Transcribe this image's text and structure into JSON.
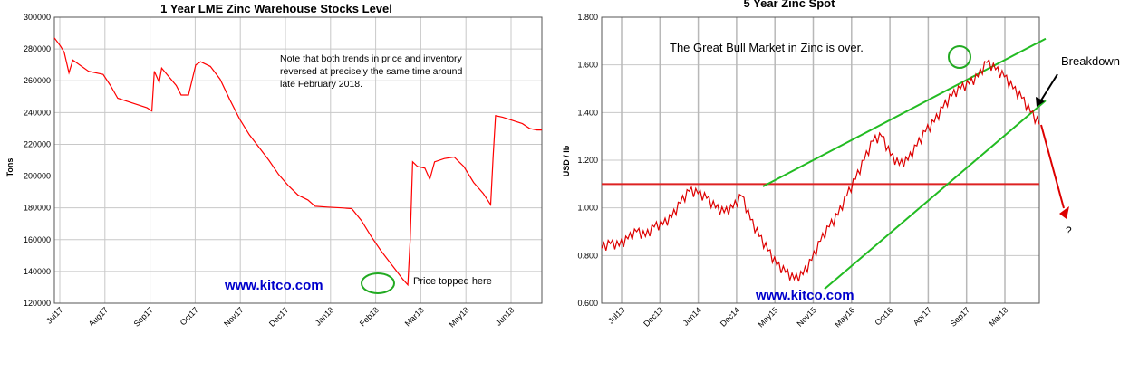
{
  "left": {
    "title": "1 Year LME Zinc Warehouse Stocks Level",
    "ylabel": "Tons",
    "ylim": [
      120000,
      300000
    ],
    "yticks": [
      120000,
      140000,
      160000,
      180000,
      200000,
      220000,
      240000,
      260000,
      280000,
      300000
    ],
    "xticks": [
      "Jul17",
      "Aug17",
      "Sep17",
      "Oct17",
      "Nov17",
      "Dec17",
      "Jan18",
      "Feb18",
      "Mar18",
      "May18",
      "Jun18"
    ],
    "note": [
      "Note that both trends in price and inventory",
      "reversed at precisely the same time around",
      "late February 2018."
    ],
    "annotation": "Price topped here",
    "watermark": "www.kitco.com",
    "line_color": "#ff0000",
    "circle_color": "#22aa22"
  },
  "right": {
    "title": "5 Year Zinc Spot",
    "ylabel": "USD / lb",
    "ylim": [
      0.6,
      1.8
    ],
    "yticks": [
      "0.600",
      "0.800",
      "1.000",
      "1.200",
      "1.400",
      "1.600",
      "1.800"
    ],
    "xticks": [
      "Jul13",
      "Dec13",
      "Jun14",
      "Dec14",
      "May15",
      "Nov15",
      "May16",
      "Oct16",
      "Apr17",
      "Sep17",
      "Mar18"
    ],
    "note": "The Great Bull Market in Zinc is over.",
    "breakdown_label": "Breakdown",
    "question": "?",
    "watermark": "www.kitco.com",
    "price_color": "#dd0000",
    "support_color": "#dd2222",
    "channel_color": "#22bb22",
    "support_level": 1.1,
    "channel_top": [
      [
        0,
        1.09
      ],
      [
        1,
        1.71
      ]
    ],
    "channel_bottom": [
      [
        0,
        0.66
      ],
      [
        1,
        1.45
      ]
    ]
  },
  "chart_data": [
    {
      "type": "line",
      "title": "1 Year LME Zinc Warehouse Stocks Level",
      "ylabel": "Tons",
      "ylim": [
        120000,
        300000
      ],
      "categories": [
        "Jul17",
        "Aug17",
        "Sep17",
        "Oct17",
        "Nov17",
        "Dec17",
        "Jan18",
        "Feb18",
        "Mar18",
        "May18",
        "Jun18"
      ],
      "series": [
        {
          "values": [
            [
              0,
              287000
            ],
            [
              0.012,
              282000
            ],
            [
              0.02,
              278000
            ],
            [
              0.03,
              265000
            ],
            [
              0.038,
              273000
            ],
            [
              0.07,
              266000
            ],
            [
              0.1,
              264000
            ],
            [
              0.115,
              257000
            ],
            [
              0.13,
              249000
            ],
            [
              0.16,
              246000
            ],
            [
              0.19,
              243000
            ],
            [
              0.2,
              241000
            ],
            [
              0.205,
              266000
            ],
            [
              0.215,
              259000
            ],
            [
              0.22,
              268000
            ],
            [
              0.25,
              257000
            ],
            [
              0.26,
              251000
            ],
            [
              0.275,
              251000
            ],
            [
              0.29,
              270000
            ],
            [
              0.3,
              272000
            ],
            [
              0.32,
              269000
            ],
            [
              0.34,
              261000
            ],
            [
              0.36,
              248000
            ],
            [
              0.38,
              236000
            ],
            [
              0.4,
              226000
            ],
            [
              0.42,
              218000
            ],
            [
              0.44,
              210000
            ],
            [
              0.46,
              201000
            ],
            [
              0.48,
              194000
            ],
            [
              0.5,
              188000
            ],
            [
              0.52,
              185000
            ],
            [
              0.535,
              181000
            ],
            [
              0.56,
              180500
            ],
            [
              0.59,
              180000
            ],
            [
              0.61,
              179500
            ],
            [
              0.63,
              172000
            ],
            [
              0.65,
              162000
            ],
            [
              0.67,
              153000
            ],
            [
              0.69,
              145000
            ],
            [
              0.7,
              141000
            ],
            [
              0.715,
              135000
            ],
            [
              0.725,
              131500
            ],
            [
              0.73,
              160000
            ],
            [
              0.735,
              209000
            ],
            [
              0.745,
              206000
            ],
            [
              0.76,
              205000
            ],
            [
              0.77,
              198000
            ],
            [
              0.78,
              209000
            ],
            [
              0.8,
              211000
            ],
            [
              0.82,
              212000
            ],
            [
              0.84,
              206000
            ],
            [
              0.86,
              196000
            ],
            [
              0.88,
              189000
            ],
            [
              0.895,
              182000
            ],
            [
              0.9,
              212000
            ],
            [
              0.905,
              238000
            ],
            [
              0.92,
              237000
            ],
            [
              0.94,
              235000
            ],
            [
              0.96,
              233000
            ],
            [
              0.975,
              230000
            ],
            [
              0.99,
              229000
            ],
            [
              1.0,
              229000
            ]
          ]
        }
      ]
    },
    {
      "type": "line",
      "title": "5 Year Zinc Spot",
      "ylabel": "USD / lb",
      "ylim": [
        0.6,
        1.8
      ],
      "categories": [
        "Jul13",
        "Dec13",
        "Jun14",
        "Dec14",
        "May15",
        "Nov15",
        "May16",
        "Oct16",
        "Apr17",
        "Sep17",
        "Mar18"
      ],
      "series": [
        {
          "values": [
            [
              0,
              0.83
            ],
            [
              0.02,
              0.85
            ],
            [
              0.04,
              0.84
            ],
            [
              0.06,
              0.87
            ],
            [
              0.08,
              0.9
            ],
            [
              0.1,
              0.88
            ],
            [
              0.12,
              0.92
            ],
            [
              0.14,
              0.93
            ],
            [
              0.16,
              0.96
            ],
            [
              0.18,
              1.02
            ],
            [
              0.2,
              1.07
            ],
            [
              0.22,
              1.06
            ],
            [
              0.24,
              1.04
            ],
            [
              0.26,
              1.0
            ],
            [
              0.28,
              0.98
            ],
            [
              0.3,
              1.0
            ],
            [
              0.32,
              1.05
            ],
            [
              0.34,
              0.95
            ],
            [
              0.36,
              0.88
            ],
            [
              0.38,
              0.82
            ],
            [
              0.4,
              0.76
            ],
            [
              0.42,
              0.73
            ],
            [
              0.44,
              0.7
            ],
            [
              0.46,
              0.72
            ],
            [
              0.48,
              0.78
            ],
            [
              0.5,
              0.86
            ],
            [
              0.52,
              0.92
            ],
            [
              0.54,
              0.97
            ],
            [
              0.56,
              1.05
            ],
            [
              0.58,
              1.12
            ],
            [
              0.6,
              1.2
            ],
            [
              0.62,
              1.28
            ],
            [
              0.64,
              1.3
            ],
            [
              0.66,
              1.22
            ],
            [
              0.68,
              1.18
            ],
            [
              0.7,
              1.2
            ],
            [
              0.72,
              1.26
            ],
            [
              0.74,
              1.32
            ],
            [
              0.76,
              1.36
            ],
            [
              0.78,
              1.42
            ],
            [
              0.8,
              1.47
            ],
            [
              0.82,
              1.5
            ],
            [
              0.84,
              1.52
            ],
            [
              0.86,
              1.55
            ],
            [
              0.88,
              1.61
            ],
            [
              0.9,
              1.58
            ],
            [
              0.92,
              1.55
            ],
            [
              0.94,
              1.5
            ],
            [
              0.96,
              1.46
            ],
            [
              0.98,
              1.4
            ],
            [
              1.0,
              1.35
            ]
          ]
        }
      ]
    }
  ]
}
